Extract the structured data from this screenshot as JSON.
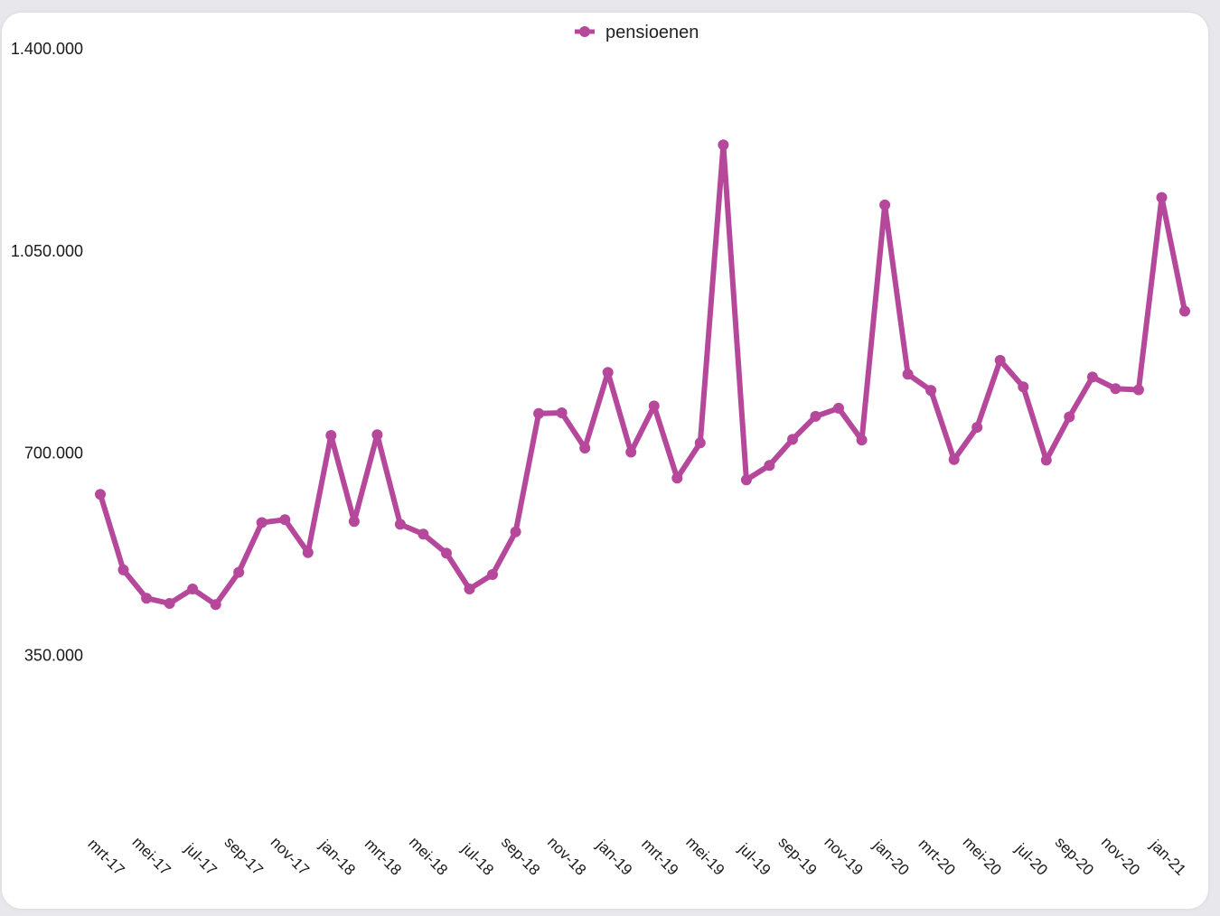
{
  "chart_data": {
    "type": "line",
    "title": "",
    "xlabel": "",
    "ylabel": "",
    "ylim": [
      0,
      1400000
    ],
    "y_ticks": [
      350000,
      700000,
      1050000,
      1400000
    ],
    "y_tick_labels": [
      "350.000",
      "700.000",
      "1.050.000",
      "1.400.000"
    ],
    "x": [
      "mrt-17",
      "apr-17",
      "mei-17",
      "jun-17",
      "jul-17",
      "aug-17",
      "sep-17",
      "okt-17",
      "nov-17",
      "dec-17",
      "jan-18",
      "feb-18",
      "mrt-18",
      "apr-18",
      "mei-18",
      "jun-18",
      "jul-18",
      "aug-18",
      "sep-18",
      "okt-18",
      "nov-18",
      "dec-18",
      "jan-19",
      "feb-19",
      "mrt-19",
      "apr-19",
      "mei-19",
      "jun-19",
      "jul-19",
      "aug-19",
      "sep-19",
      "okt-19",
      "nov-19",
      "dec-19",
      "jan-20",
      "feb-20",
      "mrt-20",
      "apr-20",
      "mei-20",
      "jun-20",
      "jul-20",
      "aug-20",
      "sep-20",
      "okt-20",
      "nov-20",
      "dec-20",
      "jan-21",
      "feb-21"
    ],
    "x_tick_labels": [
      "mrt-17",
      "mei-17",
      "jul-17",
      "sep-17",
      "nov-17",
      "jan-18",
      "mrt-18",
      "mei-18",
      "jul-18",
      "sep-18",
      "nov-18",
      "jan-19",
      "mrt-19",
      "mei-19",
      "jul-19",
      "sep-19",
      "nov-19",
      "jan-20",
      "mrt-20",
      "mei-20",
      "jul-20",
      "sep-20",
      "nov-20",
      "jan-21"
    ],
    "legend_position": "top-center",
    "grid": false,
    "series": [
      {
        "name": "pensioenen",
        "color": "#b5489b",
        "values": [
          627000,
          496000,
          447000,
          438000,
          463000,
          436000,
          492000,
          578000,
          583000,
          526000,
          729000,
          580000,
          730000,
          575000,
          558000,
          525000,
          463000,
          488000,
          562000,
          767000,
          768000,
          707000,
          838000,
          700000,
          780000,
          655000,
          716000,
          1232000,
          652000,
          677000,
          722000,
          762000,
          776000,
          721000,
          1128000,
          835000,
          807000,
          687000,
          743000,
          859000,
          813000,
          686000,
          761000,
          830000,
          810000,
          808000,
          1141000,
          944000
        ]
      }
    ]
  }
}
